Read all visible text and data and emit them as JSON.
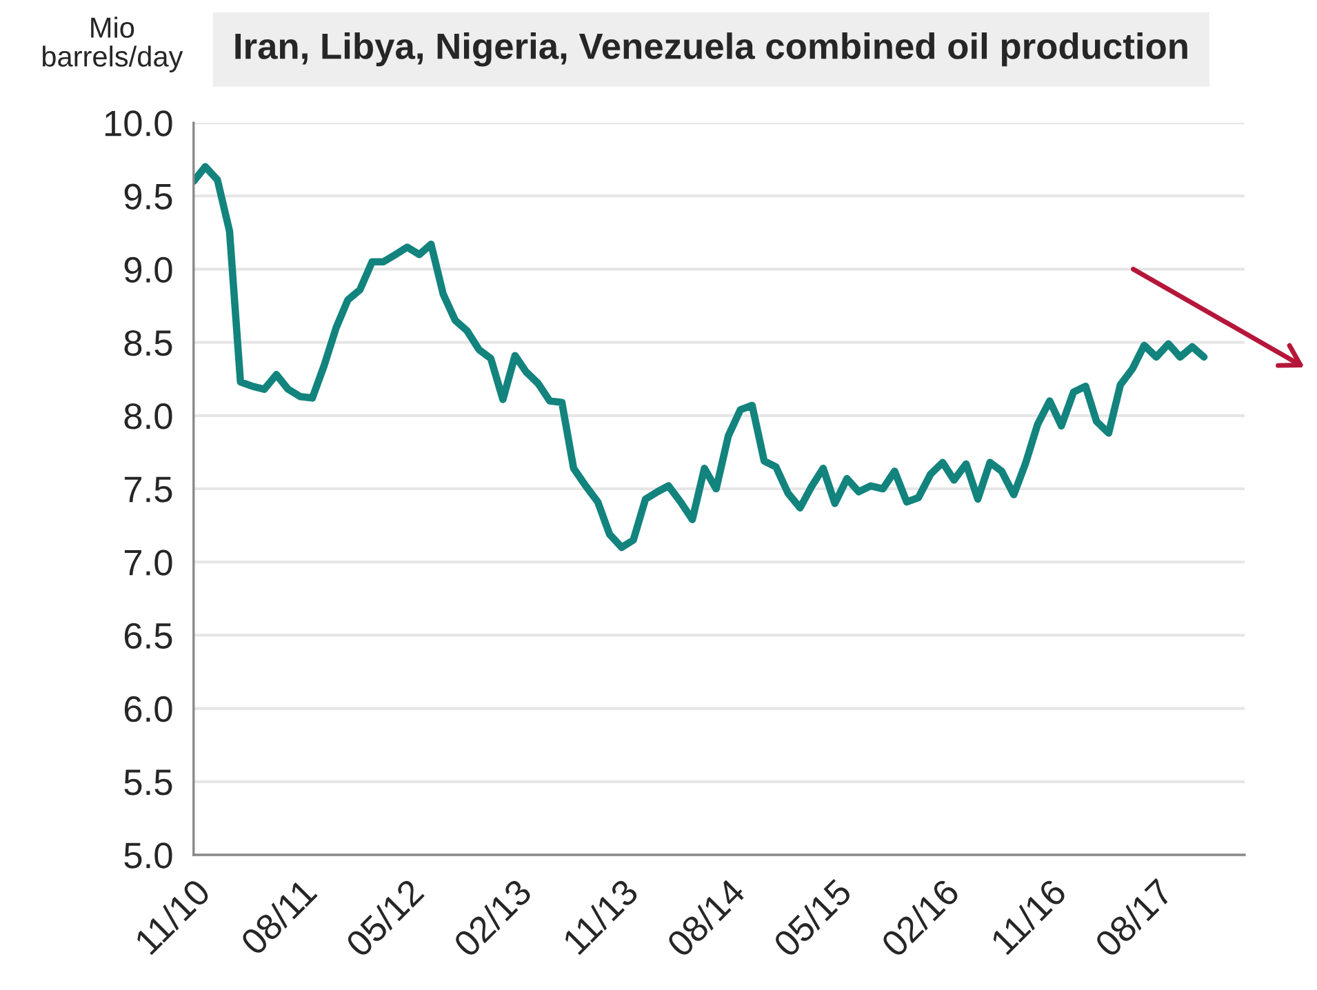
{
  "chart_data": {
    "type": "line",
    "title": "Iran, Libya, Nigeria, Venezuela combined oil production",
    "ylabel": "Mio\nbarrels/day",
    "x": [
      "2010-11",
      "2010-12",
      "2011-01",
      "2011-02",
      "2011-03",
      "2011-04",
      "2011-05",
      "2011-06",
      "2011-07",
      "2011-08",
      "2011-09",
      "2011-10",
      "2011-11",
      "2011-12",
      "2012-01",
      "2012-02",
      "2012-03",
      "2012-04",
      "2012-05",
      "2012-06",
      "2012-07",
      "2012-08",
      "2012-09",
      "2012-10",
      "2012-11",
      "2012-12",
      "2013-01",
      "2013-02",
      "2013-03",
      "2013-04",
      "2013-05",
      "2013-06",
      "2013-07",
      "2013-08",
      "2013-09",
      "2013-10",
      "2013-11",
      "2013-12",
      "2014-01",
      "2014-02",
      "2014-03",
      "2014-04",
      "2014-05",
      "2014-06",
      "2014-07",
      "2014-08",
      "2014-09",
      "2014-10",
      "2014-11",
      "2014-12",
      "2015-01",
      "2015-02",
      "2015-03",
      "2015-04",
      "2015-05",
      "2015-06",
      "2015-07",
      "2015-08",
      "2015-09",
      "2015-10",
      "2015-11",
      "2015-12",
      "2016-01",
      "2016-02",
      "2016-03",
      "2016-04",
      "2016-05",
      "2016-06",
      "2016-07",
      "2016-08",
      "2016-09",
      "2016-10",
      "2016-11",
      "2016-12",
      "2017-01",
      "2017-02",
      "2017-03",
      "2017-04",
      "2017-05",
      "2017-06",
      "2017-07",
      "2017-08",
      "2017-09",
      "2017-10",
      "2017-11",
      "2017-12"
    ],
    "series": [
      {
        "color": "#13837d",
        "values": [
          9.6,
          9.7,
          9.61,
          9.26,
          8.23,
          8.2,
          8.18,
          8.28,
          8.18,
          8.13,
          8.12,
          8.34,
          8.6,
          8.79,
          8.86,
          9.05,
          9.05,
          9.1,
          9.15,
          9.1,
          9.17,
          8.83,
          8.65,
          8.58,
          8.45,
          8.39,
          8.11,
          8.41,
          8.3,
          8.22,
          8.1,
          8.09,
          7.64,
          7.52,
          7.41,
          7.19,
          7.1,
          7.15,
          7.43,
          7.48,
          7.52,
          7.41,
          7.29,
          7.64,
          7.5,
          7.86,
          8.04,
          8.07,
          7.69,
          7.65,
          7.47,
          7.37,
          7.51,
          7.64,
          7.4,
          7.57,
          7.48,
          7.52,
          7.5,
          7.62,
          7.41,
          7.44,
          7.6,
          7.68,
          7.56,
          7.67,
          7.43,
          7.68,
          7.62,
          7.46,
          7.68,
          7.94,
          8.1,
          7.93,
          8.16,
          8.2,
          7.96,
          7.88,
          8.21,
          8.32,
          8.48,
          8.4,
          8.49,
          8.4,
          8.47,
          8.4
        ]
      }
    ],
    "xlim": [
      "2010-11",
      "2018-03-15"
    ],
    "xticks": [
      {
        "value": "2010-11",
        "label": "11/10"
      },
      {
        "value": "2011-08",
        "label": "08/11"
      },
      {
        "value": "2012-05",
        "label": "05/12"
      },
      {
        "value": "2013-02",
        "label": "02/13"
      },
      {
        "value": "2013-11",
        "label": "11/13"
      },
      {
        "value": "2014-08",
        "label": "08/14"
      },
      {
        "value": "2015-05",
        "label": "05/15"
      },
      {
        "value": "2016-02",
        "label": "02/16"
      },
      {
        "value": "2016-11",
        "label": "11/16"
      },
      {
        "value": "2017-08",
        "label": "08/17"
      }
    ],
    "ylim": [
      5.0,
      10.0
    ],
    "yticks": [
      {
        "value": 5.0,
        "label": "5.0"
      },
      {
        "value": 5.5,
        "label": "5.5"
      },
      {
        "value": 6.0,
        "label": "6.0"
      },
      {
        "value": 6.5,
        "label": "6.5"
      },
      {
        "value": 7.0,
        "label": "7.0"
      },
      {
        "value": 7.5,
        "label": "7.5"
      },
      {
        "value": 8.0,
        "label": "8.0"
      },
      {
        "value": 8.5,
        "label": "8.5"
      },
      {
        "value": 9.0,
        "label": "9.0"
      },
      {
        "value": 9.5,
        "label": "9.5"
      },
      {
        "value": 10.0,
        "label": "10.0"
      }
    ],
    "grid": "y",
    "marker": "none",
    "line_style": "solid"
  }
}
